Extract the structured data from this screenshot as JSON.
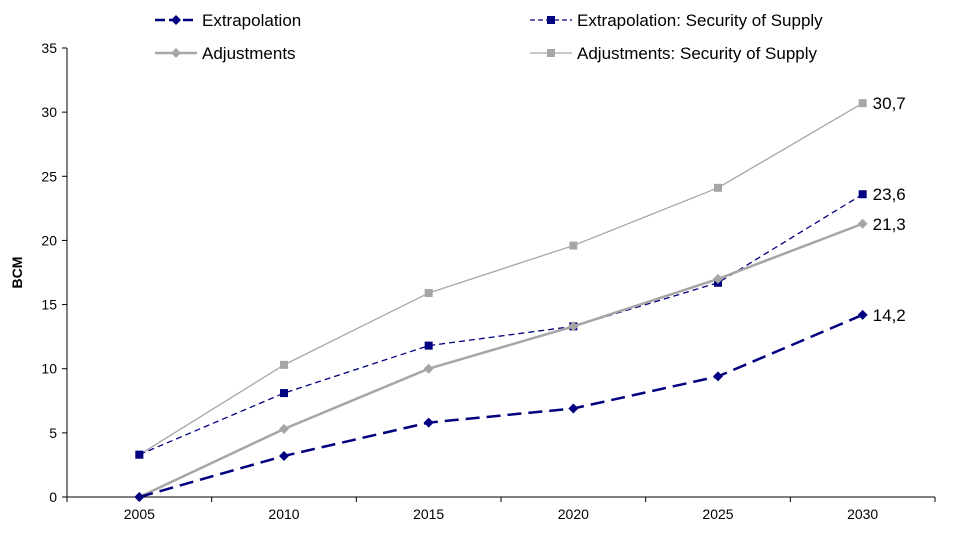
{
  "chart_data": {
    "type": "line",
    "title": "",
    "xlabel": "",
    "ylabel": "BCM",
    "x": [
      "2005",
      "2010",
      "2015",
      "2020",
      "2025",
      "2030"
    ],
    "yticks": [
      "0",
      "5",
      "10",
      "15",
      "20",
      "25",
      "30",
      "35"
    ],
    "ylim": [
      0,
      35
    ],
    "grid": false,
    "legend_position": "top",
    "series": [
      {
        "name": "Extrapolation",
        "values": [
          0,
          3.2,
          5.8,
          6.9,
          9.4,
          14.2
        ],
        "color": "#000080",
        "style": "dashed-thick",
        "marker": "diamond",
        "end_label": "14,2"
      },
      {
        "name": "Extrapolation: Security of Supply",
        "values": [
          3.3,
          8.1,
          11.8,
          13.3,
          16.7,
          23.6
        ],
        "color": "#000080",
        "style": "dashed-thin",
        "marker": "square",
        "end_label": "23,6"
      },
      {
        "name": "Adjustments",
        "values": [
          0,
          5.3,
          10.0,
          13.3,
          17.0,
          21.3
        ],
        "color": "#A6A6A6",
        "style": "solid-thick",
        "marker": "diamond",
        "end_label": "21,3"
      },
      {
        "name": "Adjustments: Security of Supply",
        "values": [
          3.3,
          10.3,
          15.9,
          19.6,
          24.1,
          30.7
        ],
        "color": "#A6A6A6",
        "style": "solid-thin",
        "marker": "square",
        "end_label": "30,7"
      }
    ]
  }
}
